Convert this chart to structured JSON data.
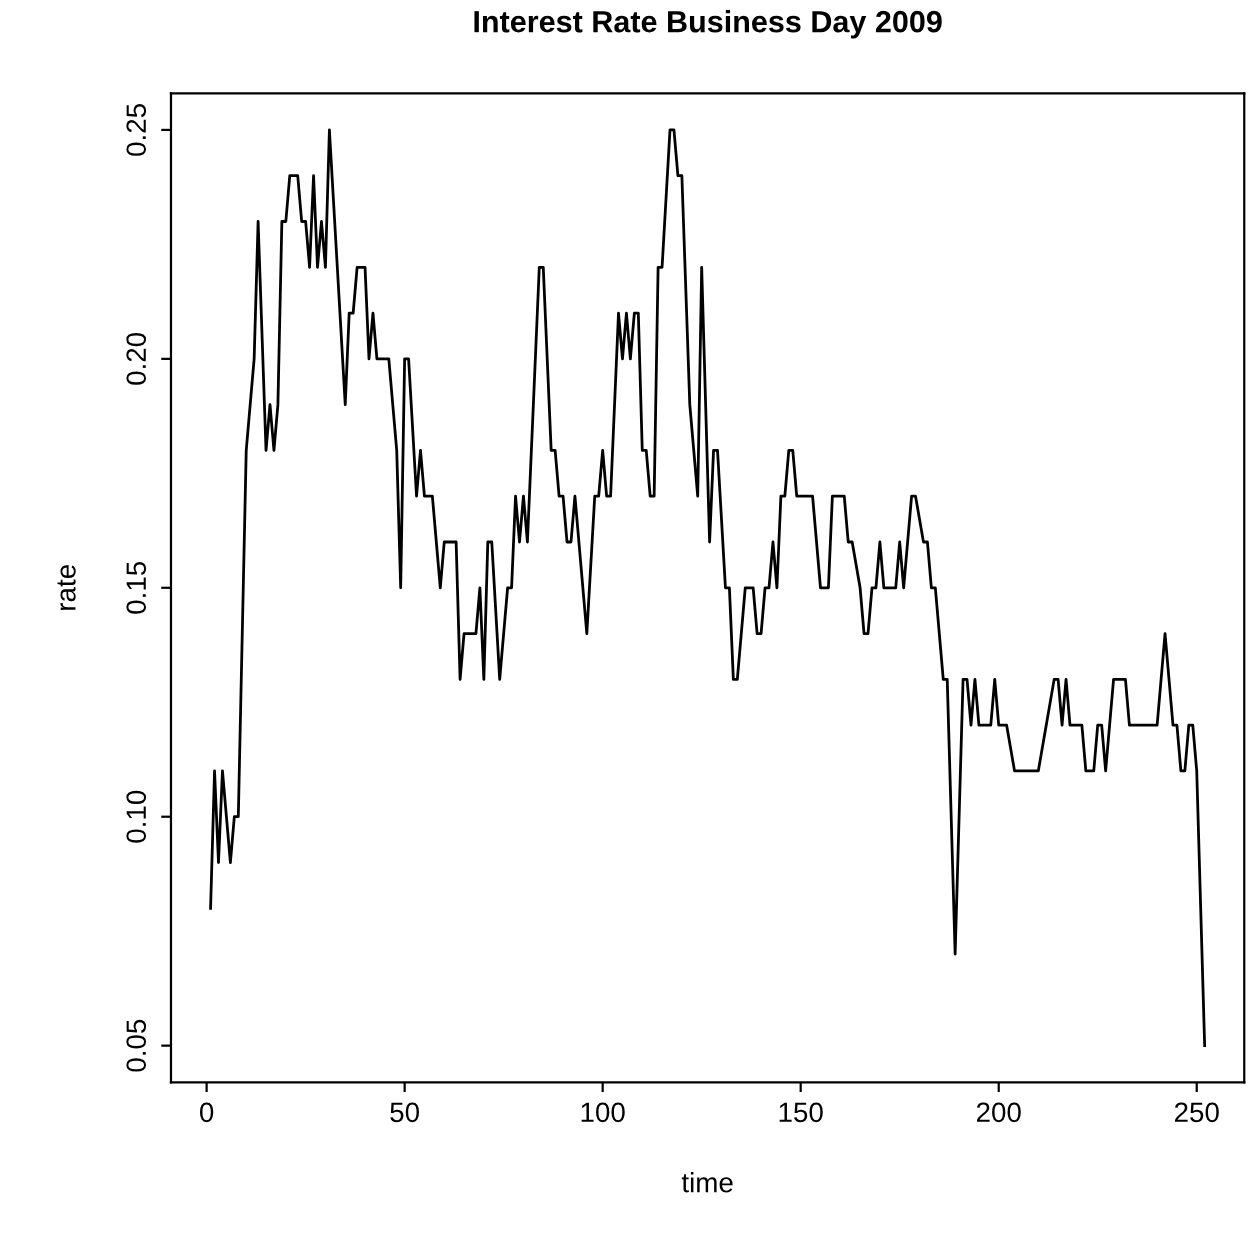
{
  "chart_data": {
    "type": "line",
    "title": "Interest Rate Business Day 2009",
    "xlabel": "time",
    "ylabel": "rate",
    "xlim": [
      -9,
      262
    ],
    "ylim": [
      0.042,
      0.258
    ],
    "xticks": [
      0,
      50,
      100,
      150,
      200,
      250
    ],
    "yticks": [
      {
        "value": 0.05,
        "label": "0.05"
      },
      {
        "value": 0.1,
        "label": "0.10"
      },
      {
        "value": 0.15,
        "label": "0.15"
      },
      {
        "value": 0.2,
        "label": "0.20"
      },
      {
        "value": 0.25,
        "label": "0.25"
      }
    ],
    "grid": false,
    "marker": "none",
    "line_style": "solid",
    "series": [
      {
        "color": "#000000",
        "x": [
          1,
          2,
          3,
          4,
          6,
          7,
          8,
          10,
          12,
          13,
          15,
          16,
          17,
          18,
          19,
          20,
          21,
          23,
          24,
          25,
          26,
          27,
          28,
          29,
          30,
          31,
          35,
          36,
          37,
          38,
          40,
          41,
          42,
          43,
          46,
          48,
          49,
          50,
          51,
          53,
          54,
          55,
          57,
          59,
          60,
          63,
          64,
          65,
          68,
          69,
          70,
          71,
          72,
          74,
          76,
          77,
          78,
          79,
          80,
          81,
          84,
          85,
          87,
          88,
          89,
          90,
          91,
          92,
          93,
          96,
          98,
          99,
          100,
          101,
          102,
          104,
          105,
          106,
          107,
          108,
          109,
          110,
          111,
          112,
          113,
          114,
          115,
          117,
          118,
          119,
          120,
          122,
          124,
          125,
          127,
          128,
          129,
          131,
          132,
          133,
          134,
          136,
          138,
          139,
          140,
          141,
          142,
          143,
          144,
          145,
          146,
          147,
          148,
          149,
          153,
          155,
          157,
          158,
          161,
          162,
          163,
          165,
          166,
          167,
          168,
          169,
          170,
          171,
          174,
          175,
          176,
          178,
          179,
          181,
          182,
          183,
          184,
          186,
          187,
          189,
          191,
          192,
          193,
          194,
          195,
          198,
          199,
          200,
          202,
          204,
          210,
          212,
          214,
          215,
          216,
          217,
          218,
          221,
          222,
          224,
          225,
          226,
          227,
          229,
          231,
          232,
          233,
          239,
          240,
          242,
          244,
          245,
          246,
          247,
          248,
          249,
          250,
          252
        ],
        "values": [
          0.08,
          0.11,
          0.09,
          0.11,
          0.09,
          0.1,
          0.1,
          0.18,
          0.2,
          0.23,
          0.18,
          0.19,
          0.18,
          0.19,
          0.23,
          0.23,
          0.24,
          0.24,
          0.23,
          0.23,
          0.22,
          0.24,
          0.22,
          0.23,
          0.22,
          0.25,
          0.19,
          0.21,
          0.21,
          0.22,
          0.22,
          0.2,
          0.21,
          0.2,
          0.2,
          0.18,
          0.15,
          0.2,
          0.2,
          0.17,
          0.18,
          0.17,
          0.17,
          0.15,
          0.16,
          0.16,
          0.13,
          0.14,
          0.14,
          0.15,
          0.13,
          0.16,
          0.16,
          0.13,
          0.15,
          0.15,
          0.17,
          0.16,
          0.17,
          0.16,
          0.22,
          0.22,
          0.18,
          0.18,
          0.17,
          0.17,
          0.16,
          0.16,
          0.17,
          0.14,
          0.17,
          0.17,
          0.18,
          0.17,
          0.17,
          0.21,
          0.2,
          0.21,
          0.2,
          0.21,
          0.21,
          0.18,
          0.18,
          0.17,
          0.17,
          0.22,
          0.22,
          0.25,
          0.25,
          0.24,
          0.24,
          0.19,
          0.17,
          0.22,
          0.16,
          0.18,
          0.18,
          0.15,
          0.15,
          0.13,
          0.13,
          0.15,
          0.15,
          0.14,
          0.14,
          0.15,
          0.15,
          0.16,
          0.15,
          0.17,
          0.17,
          0.18,
          0.18,
          0.17,
          0.17,
          0.15,
          0.15,
          0.17,
          0.17,
          0.16,
          0.16,
          0.15,
          0.14,
          0.14,
          0.15,
          0.15,
          0.16,
          0.15,
          0.15,
          0.16,
          0.15,
          0.17,
          0.17,
          0.16,
          0.16,
          0.15,
          0.15,
          0.13,
          0.13,
          0.07,
          0.13,
          0.13,
          0.12,
          0.13,
          0.12,
          0.12,
          0.13,
          0.12,
          0.12,
          0.11,
          0.11,
          0.12,
          0.13,
          0.13,
          0.12,
          0.13,
          0.12,
          0.12,
          0.11,
          0.11,
          0.12,
          0.12,
          0.11,
          0.13,
          0.13,
          0.13,
          0.12,
          0.12,
          0.12,
          0.14,
          0.12,
          0.12,
          0.11,
          0.11,
          0.12,
          0.12,
          0.11,
          0.05
        ]
      }
    ]
  }
}
